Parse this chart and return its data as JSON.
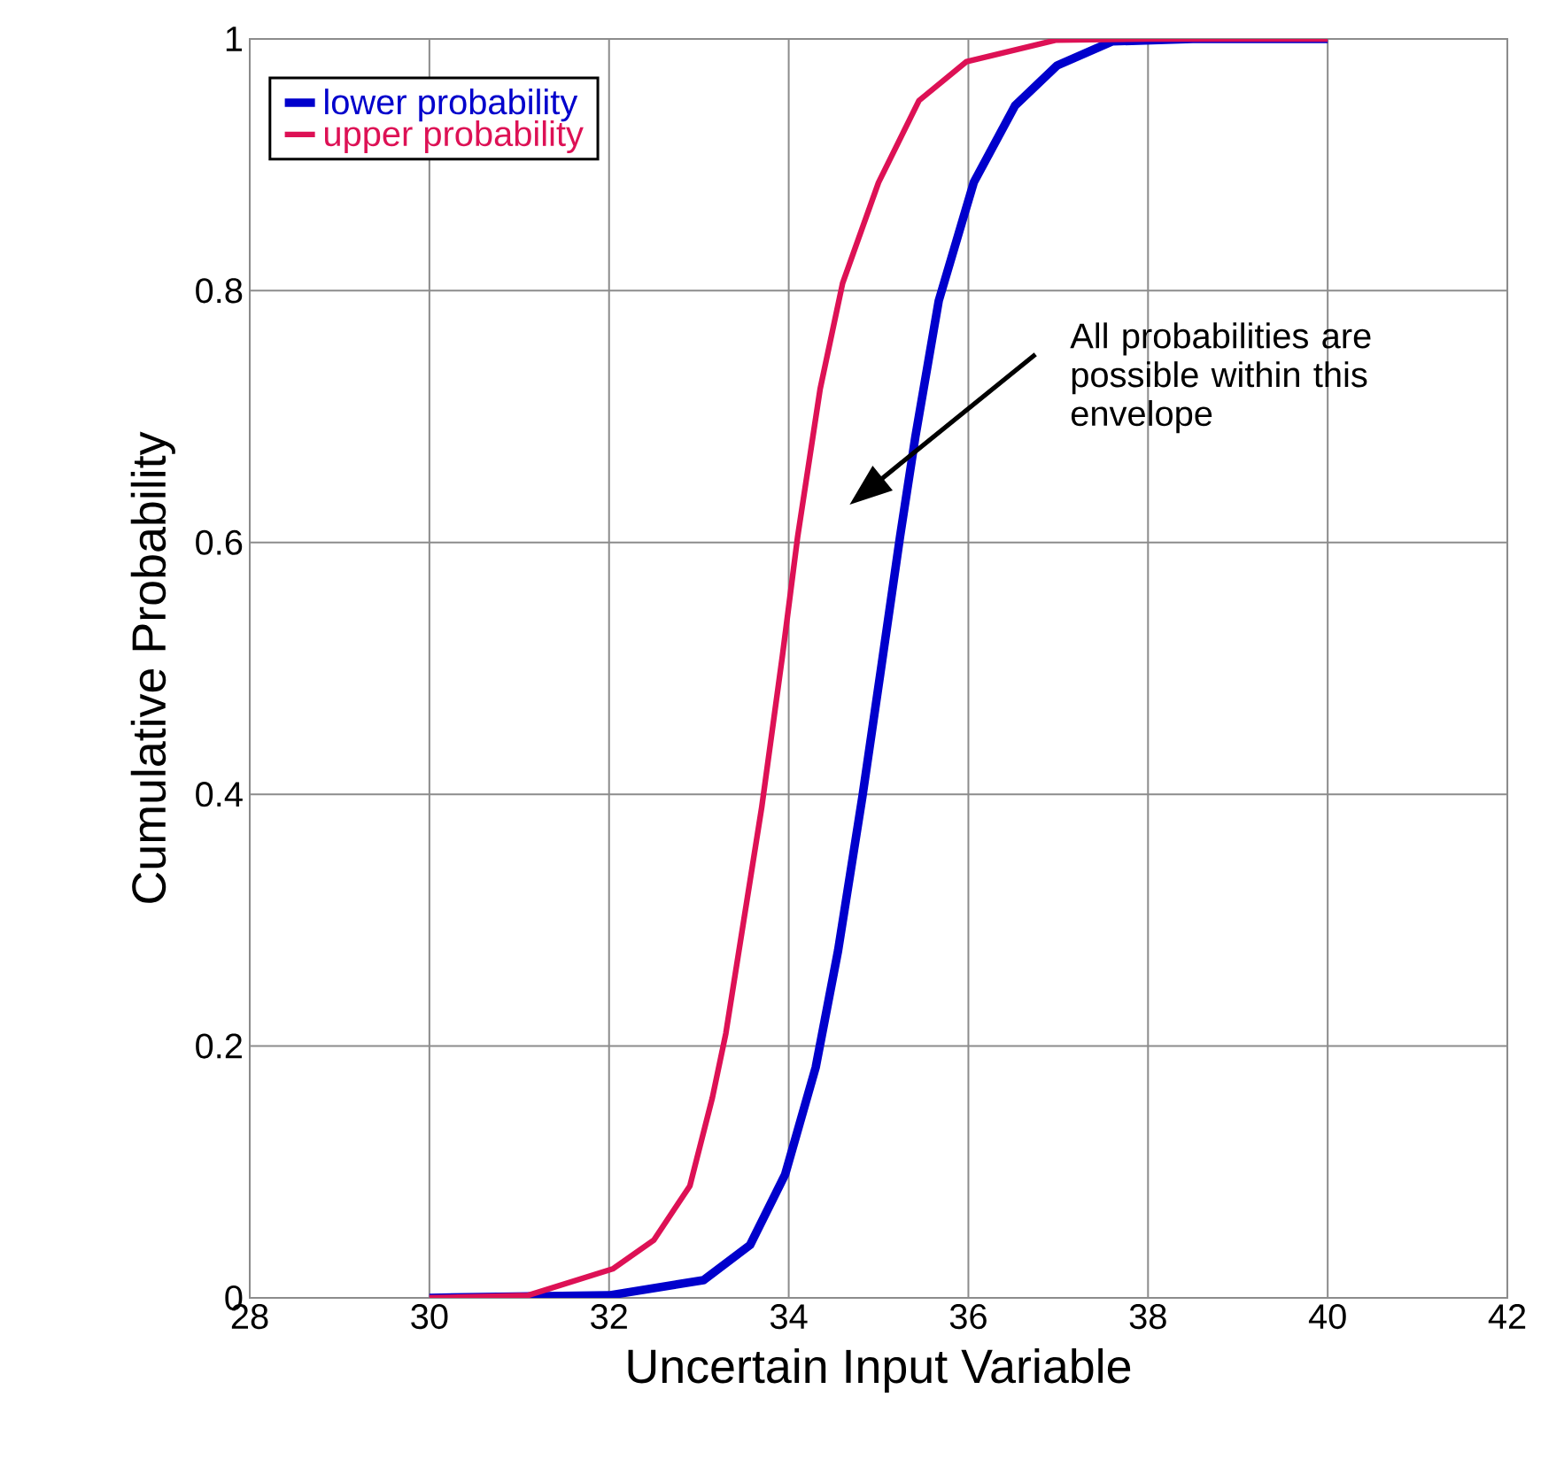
{
  "chart_data": {
    "type": "line",
    "xlabel": "Uncertain Input Variable",
    "ylabel": "Cumulative Probability",
    "xlim": [
      28,
      42
    ],
    "xticks": [
      28,
      30,
      32,
      34,
      36,
      38,
      40,
      42
    ],
    "ylim": [
      0,
      1
    ],
    "yticks": [
      0,
      0.2,
      0.4,
      0.6,
      0.8,
      1
    ],
    "grid": true,
    "legend": "top left",
    "marker": "none",
    "line_style": "solid",
    "series": [
      {
        "name": "lower probability",
        "color": "#0000cc",
        "x": [
          30,
          32.0,
          33.05,
          33.57,
          33.96,
          34.3,
          34.55,
          34.82,
          35.02,
          35.24,
          35.41,
          35.67,
          36.06,
          36.52,
          36.99,
          37.6,
          38.5,
          40
        ],
        "values": [
          0,
          0.002,
          0.014,
          0.042,
          0.098,
          0.183,
          0.276,
          0.398,
          0.496,
          0.605,
          0.684,
          0.792,
          0.886,
          0.947,
          0.979,
          0.998,
          1,
          1
        ]
      },
      {
        "name": "upper probability",
        "color": "#dd1155",
        "x": [
          30,
          31.1,
          32.04,
          32.5,
          32.9,
          33.15,
          33.3,
          33.5,
          33.7,
          33.93,
          34.1,
          34.35,
          34.6,
          35.0,
          35.45,
          35.98,
          36.97,
          38,
          40
        ],
        "values": [
          0,
          0.002,
          0.023,
          0.046,
          0.089,
          0.159,
          0.21,
          0.3,
          0.39,
          0.51,
          0.605,
          0.722,
          0.806,
          0.886,
          0.951,
          0.982,
          0.999,
          1,
          1
        ]
      }
    ],
    "annotations": [
      "All probabilities are possible within this envelope"
    ]
  }
}
